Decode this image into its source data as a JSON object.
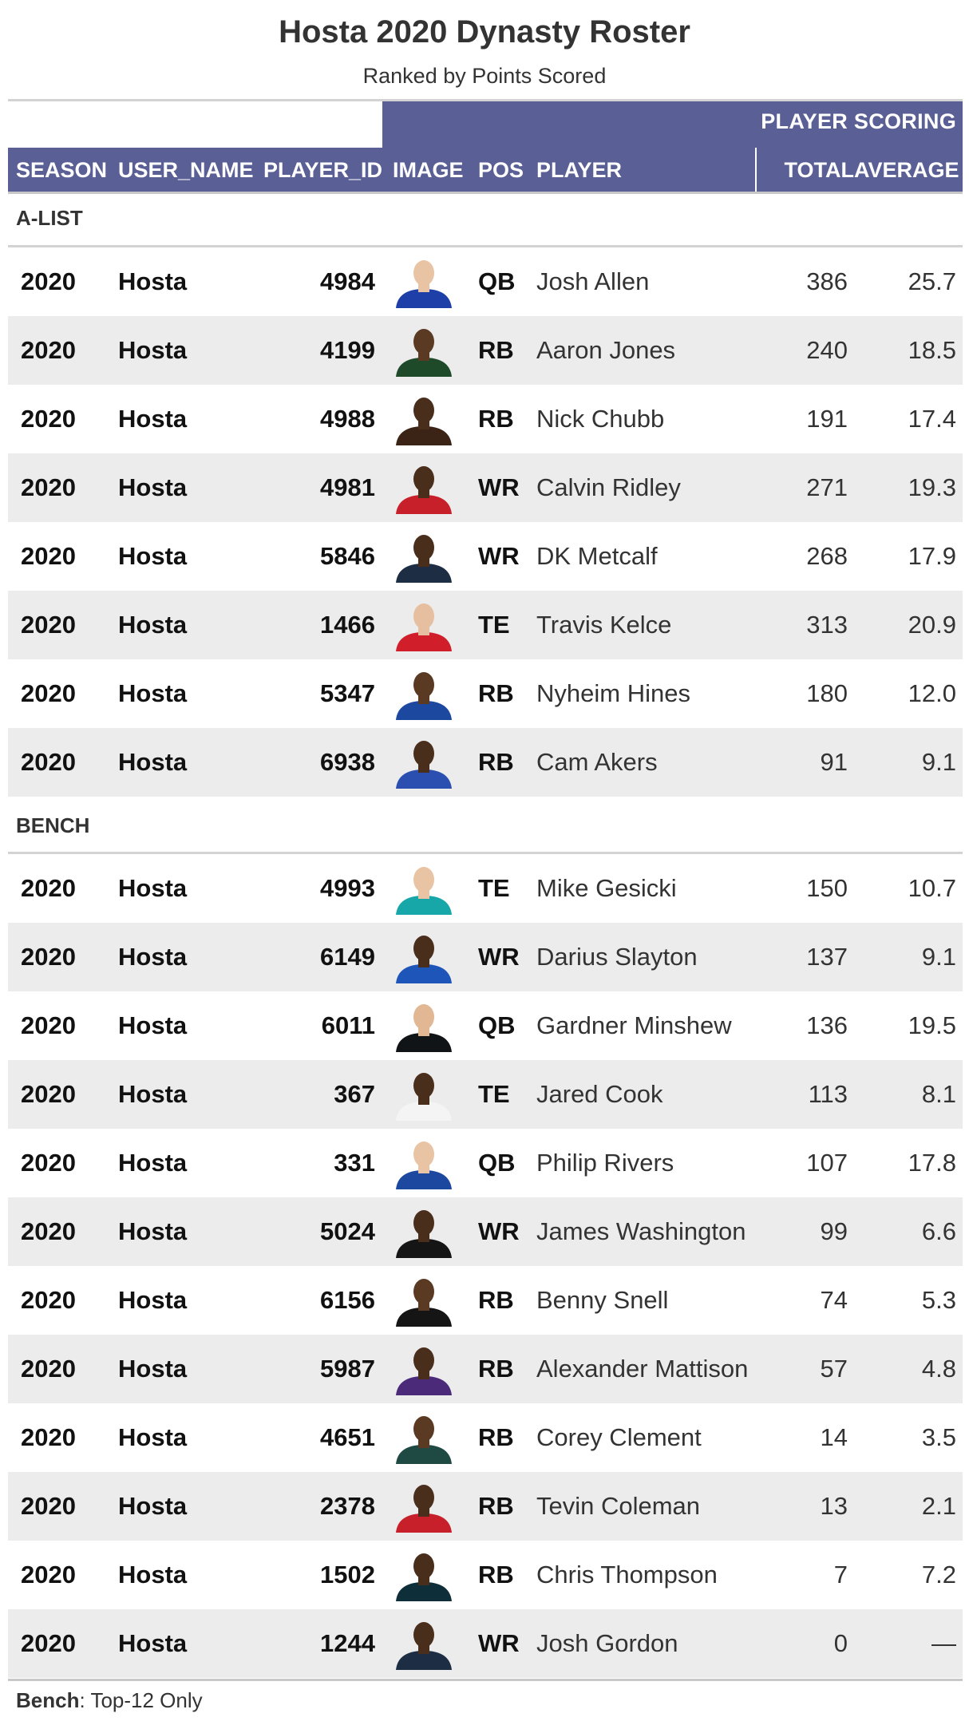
{
  "title": "Hosta 2020 Dynasty Roster",
  "subtitle": "Ranked by Points Scored",
  "spanner": "PLAYER SCORING",
  "columns": {
    "season": "SEASON",
    "user_name": "USER_NAME",
    "player_id": "PLAYER_ID",
    "image": "IMAGE",
    "pos": "POS",
    "player": "PLAYER",
    "total": "TOTAL",
    "average": "AVERAGE"
  },
  "groups": [
    {
      "label": "A-LIST",
      "rows": [
        {
          "season": "2020",
          "user": "Hosta",
          "id": "4984",
          "pos": "QB",
          "player": "Josh Allen",
          "total": "386",
          "avg": "25.7",
          "jersey": "#1f3fa8",
          "skin": "#e8c4a4"
        },
        {
          "season": "2020",
          "user": "Hosta",
          "id": "4199",
          "pos": "RB",
          "player": "Aaron Jones",
          "total": "240",
          "avg": "18.5",
          "jersey": "#1e4a2a",
          "skin": "#5a3a22"
        },
        {
          "season": "2020",
          "user": "Hosta",
          "id": "4988",
          "pos": "RB",
          "player": "Nick Chubb",
          "total": "191",
          "avg": "17.4",
          "jersey": "#3b2416",
          "skin": "#4a2e1c"
        },
        {
          "season": "2020",
          "user": "Hosta",
          "id": "4981",
          "pos": "WR",
          "player": "Calvin Ridley",
          "total": "271",
          "avg": "19.3",
          "jersey": "#c8202a",
          "skin": "#4a2e1c"
        },
        {
          "season": "2020",
          "user": "Hosta",
          "id": "5846",
          "pos": "WR",
          "player": "DK Metcalf",
          "total": "268",
          "avg": "17.9",
          "jersey": "#1c2d44",
          "skin": "#4a2e1c"
        },
        {
          "season": "2020",
          "user": "Hosta",
          "id": "1466",
          "pos": "TE",
          "player": "Travis Kelce",
          "total": "313",
          "avg": "20.9",
          "jersey": "#d01f2a",
          "skin": "#e6bfa0"
        },
        {
          "season": "2020",
          "user": "Hosta",
          "id": "5347",
          "pos": "RB",
          "player": "Nyheim Hines",
          "total": "180",
          "avg": "12.0",
          "jersey": "#1d48a0",
          "skin": "#5a3a22"
        },
        {
          "season": "2020",
          "user": "Hosta",
          "id": "6938",
          "pos": "RB",
          "player": "Cam Akers",
          "total": "91",
          "avg": "9.1",
          "jersey": "#2a4fb0",
          "skin": "#4a2e1c"
        }
      ]
    },
    {
      "label": "BENCH",
      "rows": [
        {
          "season": "2020",
          "user": "Hosta",
          "id": "4993",
          "pos": "TE",
          "player": "Mike Gesicki",
          "total": "150",
          "avg": "10.7",
          "jersey": "#17a7a8",
          "skin": "#e8c4a4"
        },
        {
          "season": "2020",
          "user": "Hosta",
          "id": "6149",
          "pos": "WR",
          "player": "Darius Slayton",
          "total": "137",
          "avg": "9.1",
          "jersey": "#1e55b8",
          "skin": "#4a2e1c"
        },
        {
          "season": "2020",
          "user": "Hosta",
          "id": "6011",
          "pos": "QB",
          "player": "Gardner Minshew",
          "total": "136",
          "avg": "19.5",
          "jersey": "#111416",
          "skin": "#e2b894"
        },
        {
          "season": "2020",
          "user": "Hosta",
          "id": "367",
          "pos": "TE",
          "player": "Jared Cook",
          "total": "113",
          "avg": "8.1",
          "jersey": "#f4f4f4",
          "skin": "#4a2e1c"
        },
        {
          "season": "2020",
          "user": "Hosta",
          "id": "331",
          "pos": "QB",
          "player": "Philip Rivers",
          "total": "107",
          "avg": "17.8",
          "jersey": "#1d48a0",
          "skin": "#e8c4a4"
        },
        {
          "season": "2020",
          "user": "Hosta",
          "id": "5024",
          "pos": "WR",
          "player": "James Washington",
          "total": "99",
          "avg": "6.6",
          "jersey": "#151515",
          "skin": "#4a2e1c"
        },
        {
          "season": "2020",
          "user": "Hosta",
          "id": "6156",
          "pos": "RB",
          "player": "Benny Snell",
          "total": "74",
          "avg": "5.3",
          "jersey": "#151515",
          "skin": "#5a3a22"
        },
        {
          "season": "2020",
          "user": "Hosta",
          "id": "5987",
          "pos": "RB",
          "player": "Alexander Mattison",
          "total": "57",
          "avg": "4.8",
          "jersey": "#4b2a7a",
          "skin": "#4a2e1c"
        },
        {
          "season": "2020",
          "user": "Hosta",
          "id": "4651",
          "pos": "RB",
          "player": "Corey Clement",
          "total": "14",
          "avg": "3.5",
          "jersey": "#1f4a44",
          "skin": "#5a3a22"
        },
        {
          "season": "2020",
          "user": "Hosta",
          "id": "2378",
          "pos": "RB",
          "player": "Tevin Coleman",
          "total": "13",
          "avg": "2.1",
          "jersey": "#c8202a",
          "skin": "#4a2e1c"
        },
        {
          "season": "2020",
          "user": "Hosta",
          "id": "1502",
          "pos": "RB",
          "player": "Chris Thompson",
          "total": "7",
          "avg": "7.2",
          "jersey": "#0e2f3a",
          "skin": "#4a2e1c"
        },
        {
          "season": "2020",
          "user": "Hosta",
          "id": "1244",
          "pos": "WR",
          "player": "Josh Gordon",
          "total": "0",
          "avg": "—",
          "jersey": "#1c2d44",
          "skin": "#4a2e1c"
        }
      ]
    }
  ],
  "footnote": {
    "bold": "Bench",
    "text": ": Top-12 Only"
  }
}
